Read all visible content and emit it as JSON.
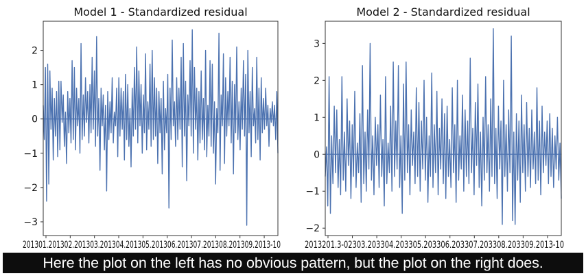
{
  "chart_data": [
    {
      "type": "line",
      "title": "Model 1 - Standardized residual",
      "xlabel": "",
      "ylabel": "",
      "ylim": [
        -3.4,
        2.85
      ],
      "yticks": [
        -3,
        -2,
        -1,
        0,
        1,
        2
      ],
      "yticklabels": [
        "−3",
        "−2",
        "−1",
        "0",
        "1",
        "2"
      ],
      "xticklabels": [
        "2013-01",
        "2013-02",
        "2013-03",
        "2013-04",
        "2013-05",
        "2013-06",
        "2013-07",
        "2013-08",
        "2013-09",
        "2013-10"
      ],
      "xtick_text": "201301.201302.201303.201304.201305.201306.201307.201308.201309.2013-10",
      "zero_line": true,
      "series_color": "#4c72b0",
      "series": [
        {
          "values": [
            0.4,
            -0.6,
            1.5,
            -2.4,
            1.6,
            -1.9,
            1.4,
            -0.3,
            0.9,
            -1.2,
            0.6,
            -0.5,
            0.8,
            -1.1,
            1.1,
            -0.9,
            1.1,
            -0.1,
            0.7,
            -0.8,
            0.2,
            -1.3,
            0.8,
            -0.4,
            0.6,
            -0.7,
            1.7,
            -0.6,
            1.5,
            -0.9,
            0.9,
            -0.2,
            0.6,
            -1.0,
            2.2,
            -0.6,
            0.7,
            -0.5,
            1.2,
            -0.1,
            0.8,
            -0.7,
            1.0,
            -0.4,
            1.8,
            -0.3,
            1.4,
            -0.8,
            2.4,
            -0.5,
            0.6,
            -1.5,
            0.9,
            -0.2,
            0.7,
            -0.9,
            0.4,
            -2.1,
            0.8,
            -0.6,
            0.5,
            -0.4,
            1.2,
            -0.7,
            0.2,
            -0.2,
            0.9,
            -1.1,
            1.2,
            -0.5,
            0.9,
            -0.3,
            0.8,
            -1.2,
            1.3,
            -0.6,
            1.0,
            -0.8,
            0.3,
            -1.4,
            0.9,
            -0.5,
            1.5,
            -0.3,
            2.1,
            -0.7,
            1.4,
            -0.2,
            1.0,
            -1.0,
            0.7,
            -0.4,
            1.9,
            -0.9,
            0.5,
            -0.3,
            1.6,
            -0.8,
            2.0,
            -0.6,
            1.2,
            -0.5,
            0.9,
            -1.3,
            0.8,
            -0.4,
            0.6,
            -1.6,
            1.1,
            -0.9,
            0.3,
            -0.4,
            1.3,
            -2.6,
            0.9,
            -0.6,
            2.3,
            -0.2,
            0.5,
            -0.8,
            1.2,
            -0.6,
            0.9,
            -0.3,
            1.8,
            -1.4,
            2.2,
            -0.5,
            1.1,
            -1.8,
            0.7,
            -0.2,
            1.7,
            -0.5,
            2.6,
            -1.0,
            1.5,
            -0.3,
            0.9,
            -1.2,
            0.8,
            -0.7,
            1.4,
            -0.6,
            0.6,
            -0.9,
            2.0,
            -1.1,
            0.4,
            -0.5,
            1.7,
            -0.8,
            1.6,
            -1.0,
            0.5,
            -1.9,
            0.3,
            -0.4,
            2.5,
            -1.5,
            0.7,
            -0.2,
            1.9,
            -1.3,
            1.2,
            -0.5,
            0.8,
            -0.2,
            1.8,
            -0.7,
            1.1,
            -1.6,
            1.0,
            -0.4,
            2.1,
            -0.6,
            0.5,
            -0.9,
            0.9,
            -0.3,
            1.7,
            -0.5,
            1.3,
            -3.1,
            2.0,
            -0.4,
            0.8,
            -1.1,
            1.5,
            -0.2,
            0.3,
            -0.7,
            1.8,
            -0.6,
            0.9,
            -1.2,
            1.2,
            -0.4,
            0.6,
            -0.3,
            0.9,
            -0.2,
            0.4,
            -0.8,
            0.3,
            -0.1,
            0.5,
            -0.2,
            0.4,
            -0.6,
            0.8,
            -1.0
          ]
        }
      ]
    },
    {
      "type": "line",
      "title": "Model 2 - Standardized residual",
      "xlabel": "",
      "ylabel": "",
      "ylim": [
        -2.2,
        3.6
      ],
      "yticks": [
        -2,
        -1,
        0,
        1,
        2,
        3
      ],
      "yticklabels": [
        "−2",
        "−1",
        "0",
        "1",
        "2",
        "3"
      ],
      "xticklabels": [
        "2013-01",
        "2013-02",
        "2013-03",
        "2013-04",
        "2013-05",
        "2013-06",
        "2013-07",
        "2013-08",
        "2013-09",
        "2013-10"
      ],
      "xtick_text": "2013201.3-02303.203304.203305.203306.203307.203308.203309.2013-10",
      "zero_line": true,
      "series_color": "#4c72b0",
      "series": [
        {
          "values": [
            -0.6,
            0.2,
            -1.4,
            2.1,
            -1.6,
            0.5,
            -0.8,
            1.3,
            -0.5,
            1.2,
            -0.9,
            0.4,
            -1.1,
            2.1,
            -0.7,
            0.6,
            -1.0,
            1.5,
            -0.3,
            0.9,
            -1.2,
            0.8,
            -0.6,
            1.7,
            -0.9,
            0.3,
            -0.5,
            1.1,
            -1.3,
            2.4,
            -0.8,
            0.6,
            -1.0,
            1.2,
            -0.4,
            3.0,
            -0.7,
            0.5,
            -1.1,
            1.0,
            -0.3,
            0.8,
            -0.9,
            1.6,
            -0.6,
            0.4,
            -1.4,
            2.1,
            -0.8,
            0.3,
            -0.5,
            1.3,
            -1.0,
            2.5,
            -0.6,
            0.9,
            -0.4,
            2.4,
            -0.9,
            0.5,
            -1.6,
            1.9,
            -0.7,
            2.5,
            -0.5,
            0.8,
            -1.1,
            1.2,
            -0.3,
            0.6,
            -0.8,
            1.8,
            -0.6,
            1.4,
            -1.0,
            0.9,
            -0.4,
            2.0,
            -0.7,
            1.0,
            -1.3,
            0.5,
            -0.6,
            2.2,
            -0.9,
            0.8,
            -0.5,
            1.7,
            -1.1,
            0.7,
            -0.4,
            1.5,
            -0.8,
            1.1,
            -1.2,
            1.3,
            -0.6,
            0.4,
            -0.9,
            1.8,
            -0.5,
            0.8,
            -1.3,
            2.0,
            -0.7,
            0.5,
            -0.4,
            1.6,
            -1.0,
            1.2,
            -0.6,
            0.9,
            -0.8,
            2.6,
            -0.5,
            0.7,
            -1.1,
            1.4,
            -0.3,
            1.9,
            -0.9,
            0.6,
            -1.4,
            1.0,
            -0.7,
            2.1,
            -0.5,
            0.8,
            -1.0,
            1.5,
            -0.6,
            3.4,
            -0.8,
            0.7,
            -1.2,
            1.3,
            -0.4,
            0.9,
            -1.9,
            2.0,
            -0.6,
            0.8,
            -1.0,
            1.2,
            -0.5,
            3.2,
            -1.8,
            0.6,
            -1.9,
            1.1,
            -0.7,
            0.9,
            -1.3,
            1.6,
            -0.5,
            0.8,
            -1.0,
            1.4,
            -0.6,
            0.7,
            -0.9,
            1.2,
            -0.4,
            0.6,
            -0.8,
            1.8,
            -0.7,
            0.9,
            -1.1,
            1.3,
            -0.5,
            0.6,
            -0.3,
            0.9,
            -0.8,
            1.1,
            -0.6,
            0.7,
            -0.9,
            0.5,
            -0.4,
            1.0,
            -0.7,
            0.3,
            -1.2
          ]
        }
      ]
    }
  ],
  "caption": {
    "text": "Here the plot on the left has no obvious pattern, but the plot on the right does."
  }
}
